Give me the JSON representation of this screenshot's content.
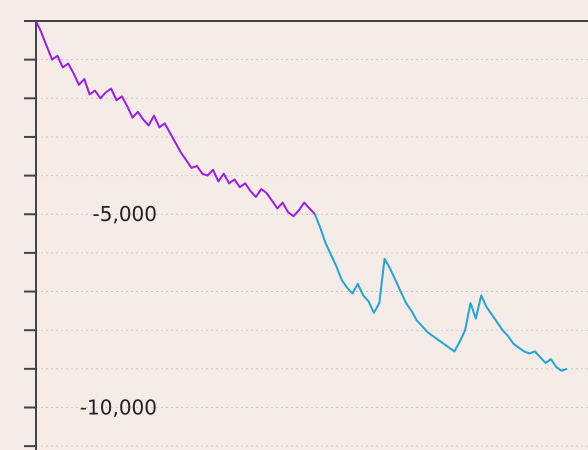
{
  "chart_data": {
    "type": "line",
    "title": "",
    "xlabel": "",
    "ylabel": "",
    "ylim": [
      -11100,
      0
    ],
    "grid": true,
    "y_tick_labels": [
      {
        "value": -5000,
        "text": "-5,000"
      },
      {
        "value": -10000,
        "text": "-10,000"
      }
    ],
    "y_minor_tick_step": 1000,
    "colors": {
      "background": "#f6ece7",
      "axis": "#444444",
      "grid": "#cfc7c1",
      "segment1": "#9b1de6",
      "segment2": "#1ea6d4"
    },
    "series": [
      {
        "color": "#9b1de6",
        "x": [
          0,
          2,
          4,
          6,
          8,
          10,
          12,
          14,
          16,
          18,
          20,
          22,
          24,
          26,
          28,
          30,
          32,
          34,
          36,
          38,
          40,
          42,
          44,
          46,
          48,
          50,
          52,
          54,
          56,
          58,
          60,
          62,
          64,
          66,
          68,
          70,
          72,
          74,
          76,
          78,
          80,
          82,
          84,
          86,
          88,
          90,
          92,
          94,
          96,
          98,
          100,
          102,
          104
        ],
        "y": [
          0,
          -300,
          -650,
          -1000,
          -900,
          -1200,
          -1100,
          -1350,
          -1650,
          -1500,
          -1900,
          -1800,
          -2000,
          -1850,
          -1750,
          -2050,
          -1950,
          -2200,
          -2500,
          -2350,
          -2550,
          -2700,
          -2450,
          -2750,
          -2650,
          -2900,
          -3150,
          -3400,
          -3600,
          -3800,
          -3750,
          -3950,
          -4000,
          -3850,
          -4150,
          -3950,
          -4200,
          -4100,
          -4300,
          -4200,
          -4400,
          -4550,
          -4350,
          -4450,
          -4650,
          -4850,
          -4700,
          -4950,
          -5050,
          -4900,
          -4700,
          -4850,
          -5000
        ]
      },
      {
        "color": "#1ea6d4",
        "x": [
          104,
          106,
          108,
          110,
          112,
          114,
          116,
          118,
          120,
          122,
          124,
          126,
          128,
          130,
          132,
          134,
          136,
          138,
          140,
          142,
          144,
          146,
          148,
          150,
          152,
          154,
          156,
          158,
          160,
          162,
          164,
          166,
          168,
          170,
          172,
          174,
          176,
          178,
          180,
          182,
          184,
          186,
          188,
          190,
          192,
          194,
          196,
          198
        ],
        "y": [
          -5000,
          -5350,
          -5750,
          -6050,
          -6350,
          -6700,
          -6900,
          -7050,
          -6800,
          -7100,
          -7250,
          -7550,
          -7300,
          -6150,
          -6400,
          -6700,
          -7000,
          -7300,
          -7500,
          -7750,
          -7900,
          -8050,
          -8150,
          -8250,
          -8350,
          -8450,
          -8550,
          -8300,
          -8000,
          -7300,
          -7700,
          -7100,
          -7400,
          -7600,
          -7800,
          -8000,
          -8150,
          -8350,
          -8450,
          -8550,
          -8600,
          -8550,
          -8700,
          -8850,
          -8750,
          -8950,
          -9050,
          -9000
        ]
      }
    ]
  }
}
